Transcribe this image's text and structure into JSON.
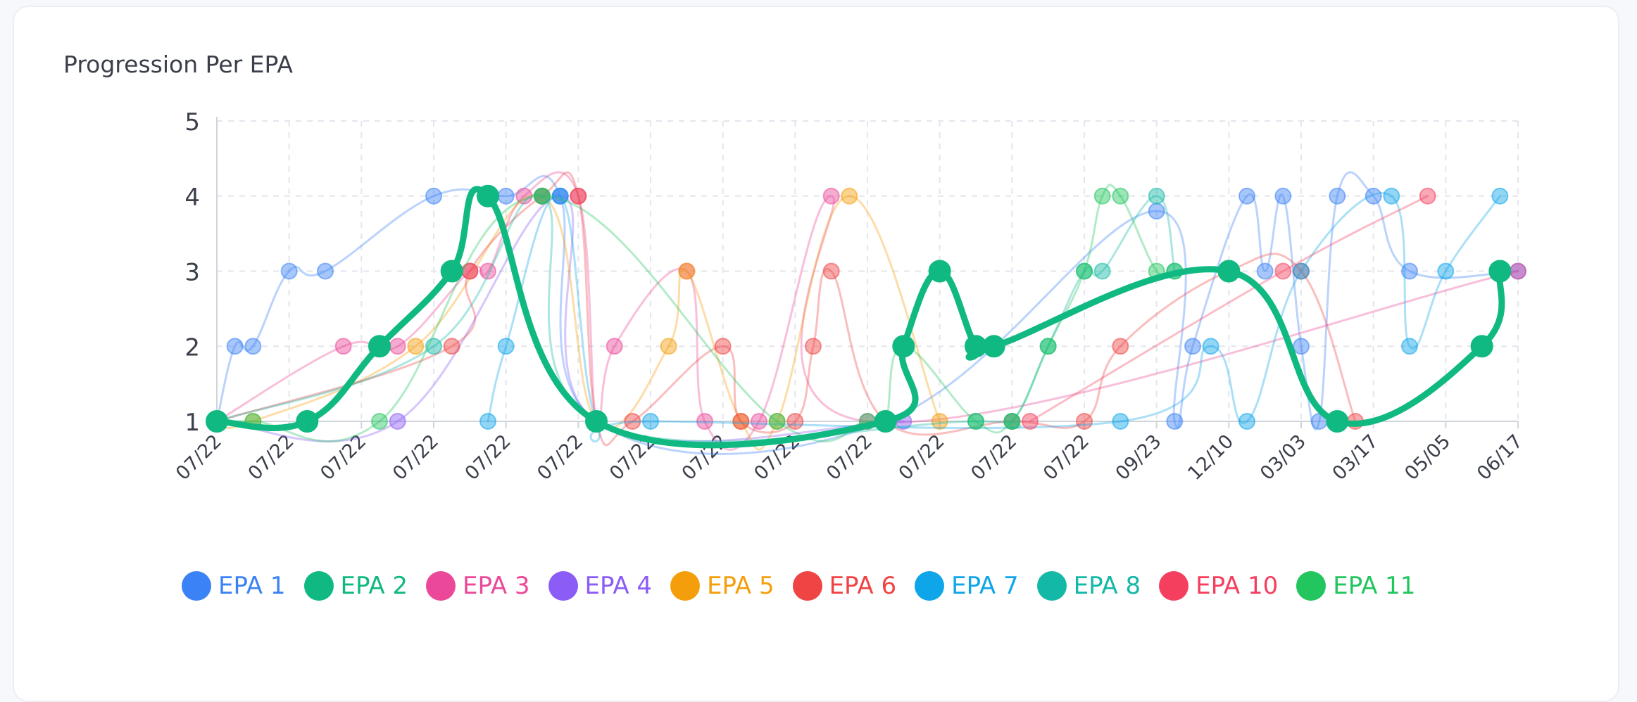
{
  "card": {
    "title": "Progression Per EPA"
  },
  "chart_data": {
    "type": "line",
    "title": "Progression Per EPA",
    "xlabel": "",
    "ylabel": "",
    "ylim": [
      1,
      5
    ],
    "yticks": [
      1,
      2,
      3,
      4,
      5
    ],
    "grid": true,
    "legend_position": "bottom",
    "x_tick_labels": [
      "07/22",
      "07/22",
      "07/22",
      "07/22",
      "07/22",
      "07/22",
      "07/22",
      "07/22",
      "07/22",
      "07/22",
      "07/22",
      "07/22",
      "07/22",
      "09/23",
      "12/10",
      "03/03",
      "03/17",
      "05/05",
      "06/17"
    ],
    "x": [
      0,
      0.25,
      0.5,
      0.75,
      1,
      1.25,
      1.5,
      1.75,
      2,
      2.25,
      2.5,
      2.75,
      3,
      3.25,
      3.5,
      3.75,
      4,
      4.25,
      4.5,
      4.75,
      5,
      5.25,
      5.5,
      5.75,
      6,
      6.25,
      6.5,
      6.75,
      7,
      7.25,
      7.5,
      7.75,
      8,
      8.25,
      8.5,
      8.75,
      9,
      9.25,
      9.5,
      9.75,
      10,
      10.25,
      10.5,
      10.75,
      11,
      11.25,
      11.5,
      11.75,
      12,
      12.25,
      12.5,
      12.75,
      13,
      13.25,
      13.5,
      13.75,
      14,
      14.25,
      14.5,
      14.75,
      15,
      15.25,
      15.5,
      15.75,
      16,
      16.25,
      16.5,
      16.75,
      17,
      17.25,
      17.5,
      17.75,
      18
    ],
    "series": [
      {
        "name": "EPA 1",
        "color": "#3b82f6",
        "points": [
          [
            0,
            1
          ],
          [
            0.25,
            2
          ],
          [
            0.5,
            2
          ],
          [
            1,
            3
          ],
          [
            1.5,
            3
          ],
          [
            3,
            4
          ],
          [
            4,
            4
          ],
          [
            4.75,
            4
          ],
          [
            5.25,
            1
          ],
          [
            9.25,
            1
          ],
          [
            13,
            3.8
          ],
          [
            13.25,
            1
          ],
          [
            13.5,
            2
          ],
          [
            14.25,
            4
          ],
          [
            14.5,
            3
          ],
          [
            14.75,
            4
          ],
          [
            15,
            2
          ],
          [
            15.25,
            1
          ],
          [
            15.5,
            4
          ],
          [
            16,
            4
          ],
          [
            16.5,
            3
          ],
          [
            18,
            3
          ]
        ]
      },
      {
        "name": "EPA 2",
        "color": "#10b981",
        "emphasis": true,
        "points": [
          [
            0,
            1
          ],
          [
            1.25,
            1
          ],
          [
            2.25,
            2
          ],
          [
            3.25,
            3
          ],
          [
            3.75,
            4
          ],
          [
            5.25,
            1
          ],
          [
            9.25,
            1
          ],
          [
            9.5,
            2
          ],
          [
            10,
            3
          ],
          [
            10.5,
            2
          ],
          [
            10.75,
            2
          ],
          [
            14,
            3
          ],
          [
            15.5,
            1
          ],
          [
            17.5,
            2
          ],
          [
            17.75,
            3
          ]
        ]
      },
      {
        "name": "EPA 3",
        "color": "#ec4899",
        "points": [
          [
            0,
            1
          ],
          [
            1.75,
            2
          ],
          [
            2.5,
            2
          ],
          [
            3.5,
            3
          ],
          [
            3.75,
            3
          ],
          [
            4.25,
            4
          ],
          [
            5,
            4
          ],
          [
            5.25,
            1
          ],
          [
            5.5,
            2
          ],
          [
            6.5,
            3
          ],
          [
            6.75,
            1
          ],
          [
            7.5,
            1
          ],
          [
            8.5,
            4
          ],
          [
            9,
            1
          ],
          [
            18,
            3
          ]
        ]
      },
      {
        "name": "EPA 4",
        "color": "#8b5cf6",
        "points": [
          [
            0,
            1
          ],
          [
            2.5,
            1
          ],
          [
            4.75,
            4
          ],
          [
            5.25,
            1
          ],
          [
            9.5,
            1
          ]
        ]
      },
      {
        "name": "EPA 5",
        "color": "#f59e0b",
        "points": [
          [
            0,
            1
          ],
          [
            0.5,
            1
          ],
          [
            2.75,
            2
          ],
          [
            4.5,
            4
          ],
          [
            5.25,
            1
          ],
          [
            6.25,
            2
          ],
          [
            6.5,
            3
          ],
          [
            7.25,
            1
          ],
          [
            7.75,
            1
          ],
          [
            8.75,
            4
          ],
          [
            10,
            1
          ]
        ]
      },
      {
        "name": "EPA 6",
        "color": "#ef4444",
        "points": [
          [
            0,
            1
          ],
          [
            3.25,
            2
          ],
          [
            3.5,
            3
          ],
          [
            4.5,
            4
          ],
          [
            5,
            4
          ],
          [
            5.25,
            1
          ],
          [
            5.75,
            1
          ],
          [
            7,
            2
          ],
          [
            7.25,
            1
          ],
          [
            8,
            1
          ],
          [
            8.25,
            2
          ],
          [
            8.5,
            3
          ],
          [
            9.25,
            1
          ],
          [
            11,
            1
          ],
          [
            12,
            1
          ],
          [
            12.5,
            2
          ],
          [
            14,
            3
          ],
          [
            15,
            3
          ],
          [
            15.75,
            1
          ]
        ]
      },
      {
        "name": "EPA 7",
        "color": "#0ea5e9",
        "points": [
          [
            3.75,
            1
          ],
          [
            4,
            2
          ],
          [
            4.75,
            4
          ],
          [
            5.25,
            1
          ],
          [
            6,
            1
          ],
          [
            12.5,
            1
          ],
          [
            13.75,
            2
          ],
          [
            14.25,
            1
          ],
          [
            15,
            3
          ],
          [
            16.25,
            4
          ],
          [
            16.5,
            2
          ],
          [
            17,
            3
          ],
          [
            17.75,
            4
          ]
        ]
      },
      {
        "name": "EPA 8",
        "color": "#14b8a6",
        "points": [
          [
            0,
            1
          ],
          [
            3,
            2
          ],
          [
            4.5,
            4
          ],
          [
            5.25,
            1
          ],
          [
            10.5,
            1
          ],
          [
            11,
            1
          ],
          [
            11.5,
            2
          ],
          [
            12,
            3
          ],
          [
            12.25,
            3
          ],
          [
            13,
            4
          ],
          [
            13.25,
            3
          ]
        ]
      },
      {
        "name": "EPA 10",
        "color": "#f43f5e",
        "points": [
          [
            11.25,
            1
          ],
          [
            14.75,
            3
          ],
          [
            16.75,
            4
          ]
        ]
      },
      {
        "name": "EPA 11",
        "color": "#22c55e",
        "points": [
          [
            0,
            1
          ],
          [
            0.5,
            1
          ],
          [
            2.25,
            1
          ],
          [
            4.5,
            4
          ],
          [
            7.75,
            1
          ],
          [
            9,
            1
          ],
          [
            9.25,
            1
          ],
          [
            9.5,
            2
          ],
          [
            10.5,
            1
          ],
          [
            11,
            1
          ],
          [
            11.5,
            2
          ],
          [
            12,
            3
          ],
          [
            12.25,
            4
          ],
          [
            12.5,
            4
          ],
          [
            13,
            3
          ],
          [
            13.25,
            3
          ]
        ]
      }
    ]
  }
}
